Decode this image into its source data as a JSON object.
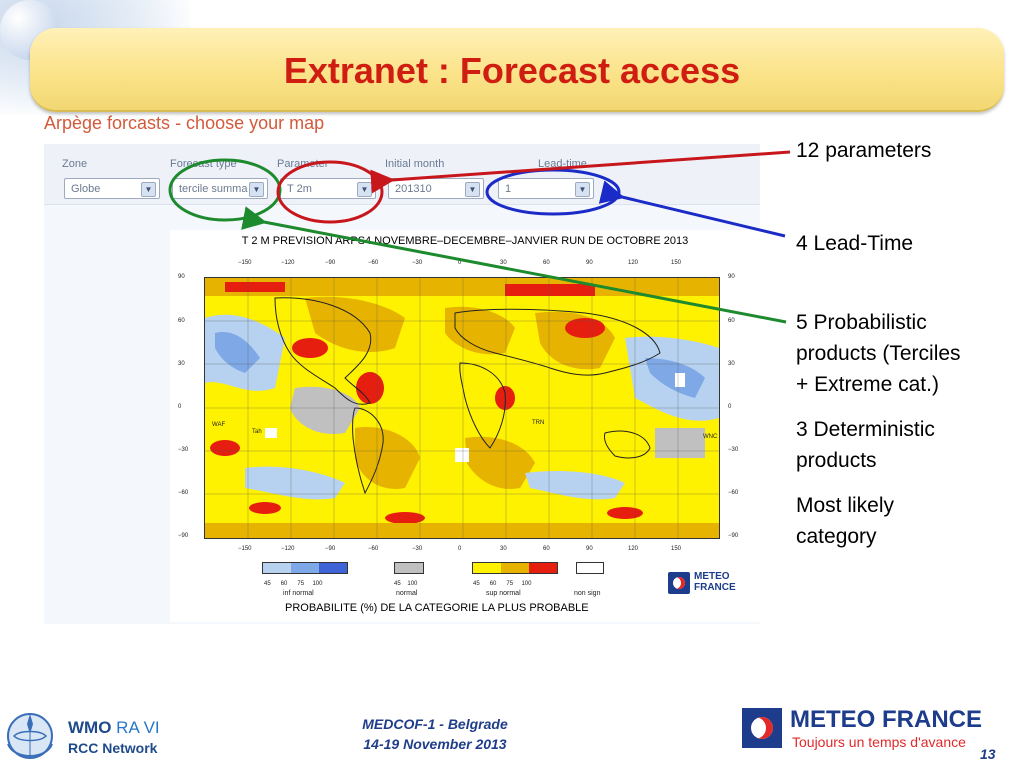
{
  "slide": {
    "title": "Extranet : Forecast access"
  },
  "web": {
    "heading": "Arpège forcasts - choose your map",
    "fields": [
      {
        "label": "Zone",
        "value": "Globe"
      },
      {
        "label": "Forecast type",
        "value": "tercile summa"
      },
      {
        "label": "Parameter",
        "value": "T 2m"
      },
      {
        "label": "Initial month",
        "value": "201310"
      },
      {
        "label": "Lead-time",
        "value": "1"
      }
    ]
  },
  "map": {
    "title": "T 2 M PREVISION ARPS4 NOVEMBRE–DECEMBRE–JANVIER  RUN DE OCTOBRE 2013",
    "lon_ticks": [
      "−150",
      "−120",
      "−90",
      "−60",
      "−30",
      "0",
      "30",
      "60",
      "90",
      "120",
      "150"
    ],
    "lat_ticks": [
      "90",
      "60",
      "30",
      "0",
      "−30",
      "−60",
      "−90"
    ],
    "station_labels": [
      "WAF",
      "Tah",
      "TRN",
      "WNC"
    ],
    "legend": [
      {
        "name": "inf normal",
        "values": [
          "45",
          "60",
          "75",
          "100"
        ],
        "colors": [
          "#b7d2f0",
          "#7ea8e6",
          "#3e63d6"
        ]
      },
      {
        "name": "normal",
        "values": [
          "45",
          "100"
        ],
        "colors": [
          "#c0c0c0"
        ]
      },
      {
        "name": "sup normal",
        "values": [
          "45",
          "60",
          "75",
          "100"
        ],
        "colors": [
          "#fff200",
          "#e6b400",
          "#e61e10"
        ]
      },
      {
        "name": "non sign",
        "values": [],
        "colors": [
          "#ffffff"
        ]
      }
    ],
    "legend_caption": "PROBABILITE (%) DE LA CATEGORIE LA PLUS PROBABLE",
    "logo_line1": "METEO",
    "logo_line2": "FRANCE",
    "colors": {
      "yellow": "#fff200",
      "orange": "#e6b400",
      "red": "#e61e10",
      "light_blue": "#b7d2f0",
      "mid_blue": "#7ea8e6",
      "dark_blue": "#3e63d6",
      "grey": "#c0c0c0"
    }
  },
  "annotations": {
    "parameters": "12 parameters",
    "lead_time": "4 Lead-Time",
    "probabilistic": [
      "5 Probabilistic",
      "products (Terciles",
      "+ Extreme cat.)"
    ],
    "deterministic": [
      "3 Deterministic",
      "products"
    ],
    "most_likely": [
      "Most likely",
      "category"
    ],
    "colors": {
      "parameters": "#c8161d",
      "lead_time": "#1b2bc8",
      "probabilistic": "#1e8a2e"
    }
  },
  "footer": {
    "wmo_main": "WMO",
    "wmo_region": "RA VI",
    "wmo_sub": "RCC Network",
    "event_line1": "MEDCOF-1 - Belgrade",
    "event_line2": "14-19 November 2013",
    "brand": "METEO FRANCE",
    "slogan": "Toujours un temps d'avance",
    "page_number": "13"
  }
}
